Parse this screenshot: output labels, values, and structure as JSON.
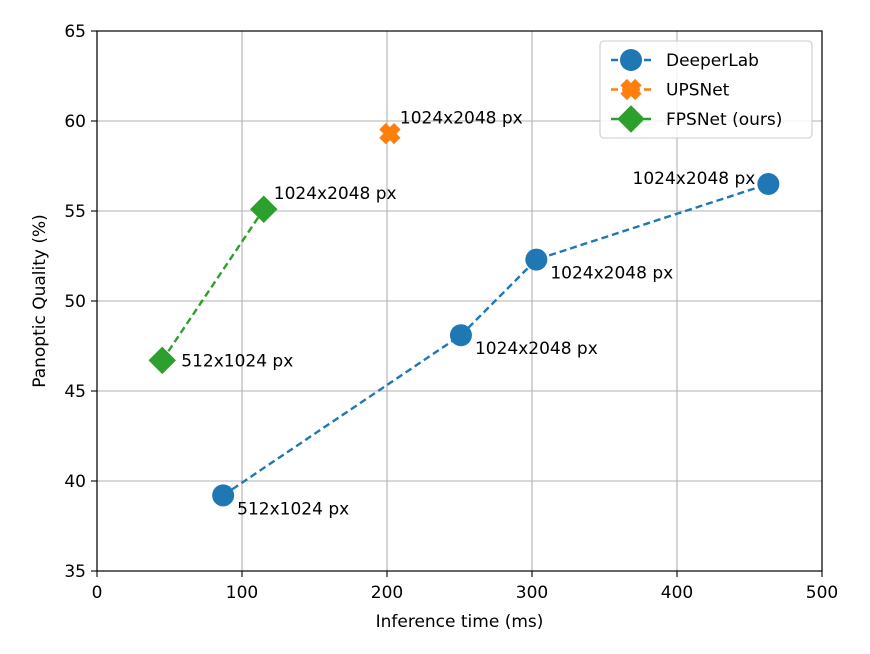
{
  "chart_data": {
    "type": "scatter",
    "title": "",
    "xlabel": "Inference time (ms)",
    "ylabel": "Panoptic Quality (%)",
    "xlim": [
      0,
      500
    ],
    "ylim": [
      35,
      65
    ],
    "xticks": [
      0,
      100,
      200,
      300,
      400,
      500
    ],
    "yticks": [
      35,
      40,
      45,
      50,
      55,
      60,
      65
    ],
    "grid": true,
    "legend_position": "top-right",
    "series": [
      {
        "name": "DeeperLab",
        "color": "#1f77b4",
        "marker": "circle",
        "line": "dashed",
        "points": [
          {
            "x": 87,
            "y": 39.2,
            "label": "512x1024 px",
            "label_pos": "below-right"
          },
          {
            "x": 251,
            "y": 48.1,
            "label": "1024x2048 px",
            "label_pos": "below-right"
          },
          {
            "x": 303,
            "y": 52.3,
            "label": "1024x2048 px",
            "label_pos": "below-right"
          },
          {
            "x": 463,
            "y": 56.5,
            "label": "1024x2048 px",
            "label_pos": "left"
          }
        ]
      },
      {
        "name": "UPSNet",
        "color": "#ff7f0e",
        "marker": "x",
        "line": "dashed",
        "points": [
          {
            "x": 202,
            "y": 59.3,
            "label": "1024x2048 px",
            "label_pos": "above-right"
          }
        ]
      },
      {
        "name": "FPSNet (ours)",
        "color": "#2ca02c",
        "marker": "diamond",
        "line": "dashed",
        "points": [
          {
            "x": 45,
            "y": 46.7,
            "label": "512x1024 px",
            "label_pos": "right"
          },
          {
            "x": 115,
            "y": 55.1,
            "label": "1024x2048 px",
            "label_pos": "above-right"
          }
        ]
      }
    ]
  }
}
